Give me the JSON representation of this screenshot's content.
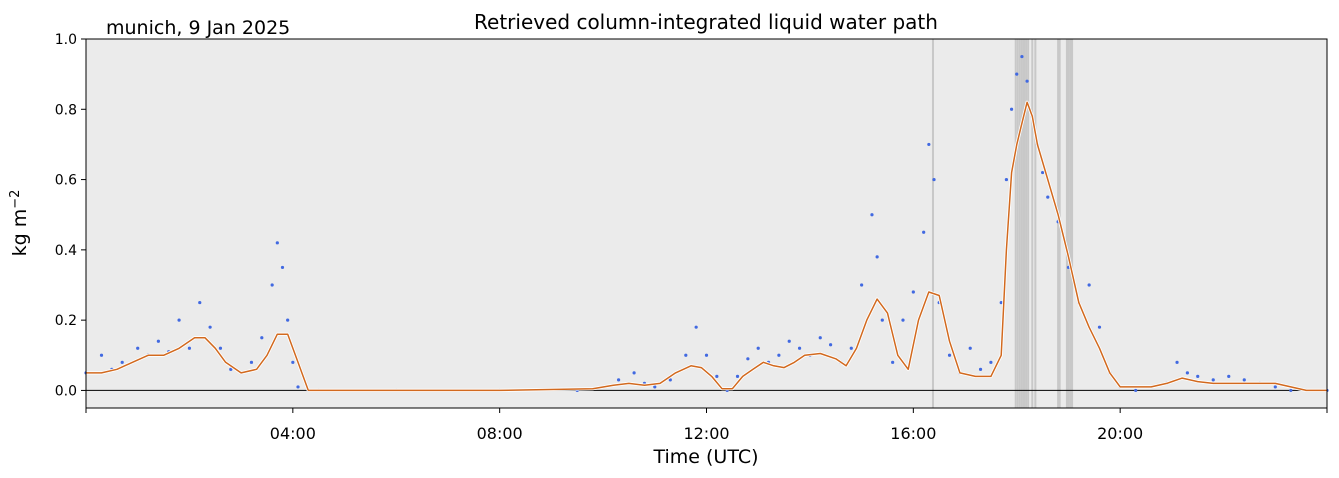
{
  "header": {
    "location_date": "munich, 9 Jan 2025",
    "title": "Retrieved column-integrated liquid water path"
  },
  "chart_data": {
    "type": "scatter",
    "title": "Retrieved column-integrated liquid water path",
    "xlabel": "Time (UTC)",
    "ylabel": "kg m−2",
    "xlim": [
      0,
      24
    ],
    "ylim": [
      -0.05,
      1.0
    ],
    "x_tick_labels": [
      "04:00",
      "08:00",
      "12:00",
      "16:00",
      "20:00"
    ],
    "x_tick_values": [
      4,
      8,
      12,
      16,
      20
    ],
    "y_tick_labels": [
      "0.0",
      "0.2",
      "0.4",
      "0.6",
      "0.8",
      "1.0"
    ],
    "y_tick_values": [
      0.0,
      0.2,
      0.4,
      0.6,
      0.8,
      1.0
    ],
    "grid": false,
    "background": "#ebebeb",
    "zero_line": 0.0,
    "flagged_times": [
      16.38,
      17.98,
      18.02,
      18.06,
      18.1,
      18.14,
      18.18,
      18.22,
      18.3,
      18.36,
      18.8,
      18.83,
      18.97,
      19.0,
      19.04,
      19.07
    ],
    "series": [
      {
        "style": "points",
        "color": "#4169e1",
        "x": [
          0.0,
          0.3,
          0.5,
          0.7,
          1.0,
          1.2,
          1.4,
          1.6,
          1.8,
          2.0,
          2.2,
          2.4,
          2.6,
          2.8,
          3.0,
          3.2,
          3.4,
          3.6,
          3.7,
          3.8,
          3.9,
          4.0,
          4.1,
          4.3,
          4.5,
          6.0,
          8.0,
          9.5,
          10.0,
          10.3,
          10.6,
          10.8,
          11.0,
          11.3,
          11.6,
          11.8,
          12.0,
          12.2,
          12.4,
          12.6,
          12.8,
          13.0,
          13.2,
          13.4,
          13.6,
          13.8,
          14.0,
          14.2,
          14.4,
          14.6,
          14.8,
          15.0,
          15.2,
          15.3,
          15.4,
          15.6,
          15.8,
          16.0,
          16.2,
          16.3,
          16.4,
          16.5,
          16.7,
          16.9,
          17.1,
          17.3,
          17.5,
          17.7,
          17.8,
          17.9,
          18.0,
          18.1,
          18.2,
          18.3,
          18.4,
          18.5,
          18.6,
          18.8,
          19.0,
          19.2,
          19.4,
          19.6,
          19.8,
          20.0,
          20.3,
          20.6,
          20.9,
          21.1,
          21.3,
          21.5,
          21.8,
          22.1,
          22.4,
          22.7,
          23.0,
          23.3,
          23.6,
          24.0
        ],
        "y": [
          0.05,
          0.1,
          0.06,
          0.08,
          0.12,
          0.1,
          0.14,
          0.11,
          0.2,
          0.12,
          0.25,
          0.18,
          0.12,
          0.06,
          0.05,
          0.08,
          0.15,
          0.3,
          0.42,
          0.35,
          0.2,
          0.08,
          0.01,
          0.0,
          0.0,
          0.0,
          0.0,
          0.0,
          0.01,
          0.03,
          0.05,
          0.02,
          0.01,
          0.03,
          0.1,
          0.18,
          0.1,
          0.04,
          0.0,
          0.04,
          0.09,
          0.12,
          0.08,
          0.1,
          0.14,
          0.12,
          0.1,
          0.15,
          0.13,
          0.08,
          0.12,
          0.3,
          0.5,
          0.38,
          0.2,
          0.08,
          0.2,
          0.28,
          0.45,
          0.7,
          0.6,
          0.25,
          0.1,
          0.05,
          0.12,
          0.06,
          0.08,
          0.25,
          0.6,
          0.8,
          0.9,
          0.95,
          0.88,
          0.78,
          0.7,
          0.62,
          0.55,
          0.48,
          0.35,
          0.25,
          0.3,
          0.18,
          0.05,
          0.01,
          0.0,
          0.01,
          0.02,
          0.08,
          0.05,
          0.04,
          0.03,
          0.04,
          0.03,
          0.02,
          0.01,
          0.0,
          0.0,
          0.0
        ]
      },
      {
        "style": "line",
        "color": "#d2691e",
        "x": [
          0.0,
          0.3,
          0.6,
          0.9,
          1.2,
          1.5,
          1.8,
          2.1,
          2.3,
          2.5,
          2.7,
          3.0,
          3.3,
          3.5,
          3.7,
          3.9,
          4.1,
          4.3,
          4.5,
          6.0,
          8.0,
          9.8,
          10.2,
          10.5,
          10.8,
          11.1,
          11.4,
          11.7,
          11.9,
          12.1,
          12.3,
          12.5,
          12.7,
          12.9,
          13.1,
          13.3,
          13.5,
          13.7,
          13.9,
          14.2,
          14.5,
          14.7,
          14.9,
          15.1,
          15.3,
          15.5,
          15.7,
          15.9,
          16.1,
          16.3,
          16.5,
          16.7,
          16.9,
          17.2,
          17.5,
          17.7,
          17.8,
          17.9,
          18.0,
          18.1,
          18.2,
          18.3,
          18.4,
          18.6,
          18.8,
          19.0,
          19.2,
          19.4,
          19.6,
          19.8,
          20.0,
          20.3,
          20.6,
          20.9,
          21.2,
          21.5,
          21.8,
          22.1,
          22.4,
          22.7,
          23.0,
          23.3,
          23.6,
          24.0
        ],
        "y": [
          0.05,
          0.05,
          0.06,
          0.08,
          0.1,
          0.1,
          0.12,
          0.15,
          0.15,
          0.12,
          0.08,
          0.05,
          0.06,
          0.1,
          0.16,
          0.16,
          0.08,
          0.0,
          0.0,
          0.0,
          0.0,
          0.005,
          0.015,
          0.02,
          0.015,
          0.02,
          0.05,
          0.07,
          0.065,
          0.04,
          0.005,
          0.005,
          0.04,
          0.06,
          0.08,
          0.07,
          0.065,
          0.08,
          0.1,
          0.105,
          0.09,
          0.07,
          0.12,
          0.2,
          0.26,
          0.22,
          0.1,
          0.06,
          0.2,
          0.28,
          0.27,
          0.14,
          0.05,
          0.04,
          0.04,
          0.1,
          0.4,
          0.62,
          0.7,
          0.76,
          0.82,
          0.78,
          0.7,
          0.6,
          0.5,
          0.38,
          0.25,
          0.18,
          0.12,
          0.05,
          0.01,
          0.01,
          0.01,
          0.02,
          0.035,
          0.025,
          0.02,
          0.02,
          0.02,
          0.02,
          0.02,
          0.01,
          0.0,
          0.0
        ]
      }
    ]
  }
}
